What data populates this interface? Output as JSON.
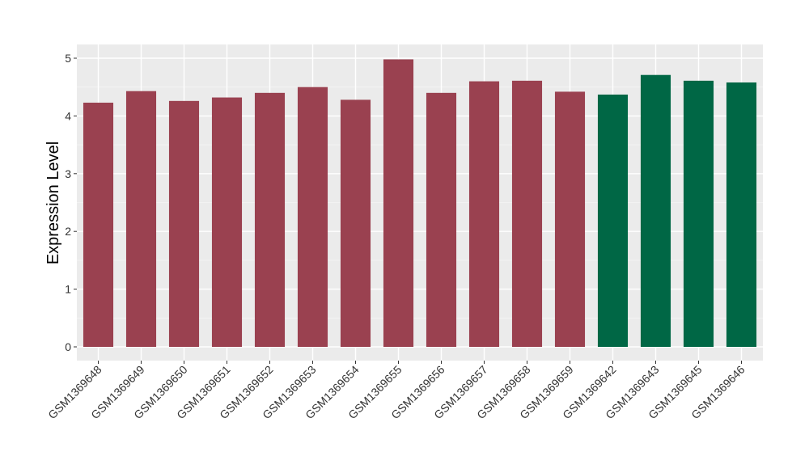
{
  "chart_data": {
    "type": "bar",
    "title": "",
    "xlabel": "",
    "ylabel": "Expression Level",
    "ylim": [
      0,
      5.18
    ],
    "yticks": [
      0,
      1,
      2,
      3,
      4,
      5
    ],
    "grid": true,
    "categories": [
      "GSM1369648",
      "GSM1369649",
      "GSM1369650",
      "GSM1369651",
      "GSM1369652",
      "GSM1369653",
      "GSM1369654",
      "GSM1369655",
      "GSM1369656",
      "GSM1369657",
      "GSM1369658",
      "GSM1369659",
      "GSM1369642",
      "GSM1369643",
      "GSM1369645",
      "GSM1369646"
    ],
    "values": [
      4.23,
      4.43,
      4.26,
      4.32,
      4.4,
      4.5,
      4.28,
      4.98,
      4.4,
      4.6,
      4.61,
      4.42,
      4.37,
      4.71,
      4.61,
      4.58
    ],
    "groups": [
      0,
      0,
      0,
      0,
      0,
      0,
      0,
      0,
      0,
      0,
      0,
      0,
      1,
      1,
      1,
      1
    ],
    "group_colors": [
      "#9A4150",
      "#006745"
    ]
  }
}
